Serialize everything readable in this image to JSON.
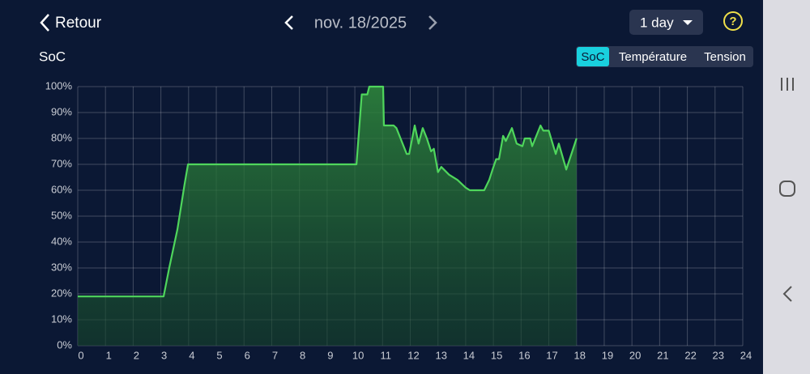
{
  "header": {
    "back": "Retour",
    "date": "nov. 18/2025",
    "range": "1 day",
    "help": "?"
  },
  "tabs": [
    "SoC",
    "Température",
    "Tension"
  ],
  "chart_data": {
    "type": "line",
    "title": "SoC",
    "color": "#4fd65c",
    "grid": true,
    "x": [
      0,
      3.1,
      3.3,
      3.6,
      3.85,
      3.98,
      10.06,
      10.25,
      10.45,
      10.52,
      11.02,
      11.05,
      11.4,
      11.5,
      11.87,
      11.96,
      12.16,
      12.3,
      12.45,
      12.6,
      12.75,
      12.85,
      13.0,
      13.12,
      13.4,
      13.7,
      14.0,
      14.15,
      14.67,
      14.85,
      14.97,
      15.1,
      15.2,
      15.35,
      15.45,
      15.67,
      15.84,
      16.05,
      16.13,
      16.33,
      16.4,
      16.7,
      16.8,
      17.0,
      17.25,
      17.36,
      17.63,
      18.0
    ],
    "values": [
      19,
      19,
      30,
      45,
      62,
      70,
      70,
      97,
      97,
      100,
      100,
      85,
      85,
      84,
      74,
      74,
      85,
      78,
      84,
      80,
      75,
      76,
      67,
      69,
      66,
      64,
      61,
      60,
      60,
      64,
      68,
      72,
      72,
      81,
      79,
      84,
      78,
      77,
      80,
      80,
      77,
      85,
      83,
      83,
      74,
      78,
      68,
      80
    ],
    "xlim": [
      0,
      24
    ],
    "xticks": [
      0,
      1,
      2,
      3,
      4,
      5,
      6,
      7,
      8,
      9,
      10,
      11,
      12,
      13,
      14,
      15,
      16,
      17,
      18,
      19,
      20,
      21,
      22,
      23,
      24
    ],
    "ylim": [
      0,
      100
    ],
    "yticks": [
      {
        "value": 0,
        "label": "0%"
      },
      {
        "value": 10,
        "label": "10%"
      },
      {
        "value": 20,
        "label": "20%"
      },
      {
        "value": 30,
        "label": "30%"
      },
      {
        "value": 40,
        "label": "40%"
      },
      {
        "value": 50,
        "label": "50%"
      },
      {
        "value": 60,
        "label": "60%"
      },
      {
        "value": 70,
        "label": "70%"
      },
      {
        "value": 80,
        "label": "80%"
      },
      {
        "value": 90,
        "label": "90%"
      },
      {
        "value": 100,
        "label": "100%"
      }
    ]
  }
}
